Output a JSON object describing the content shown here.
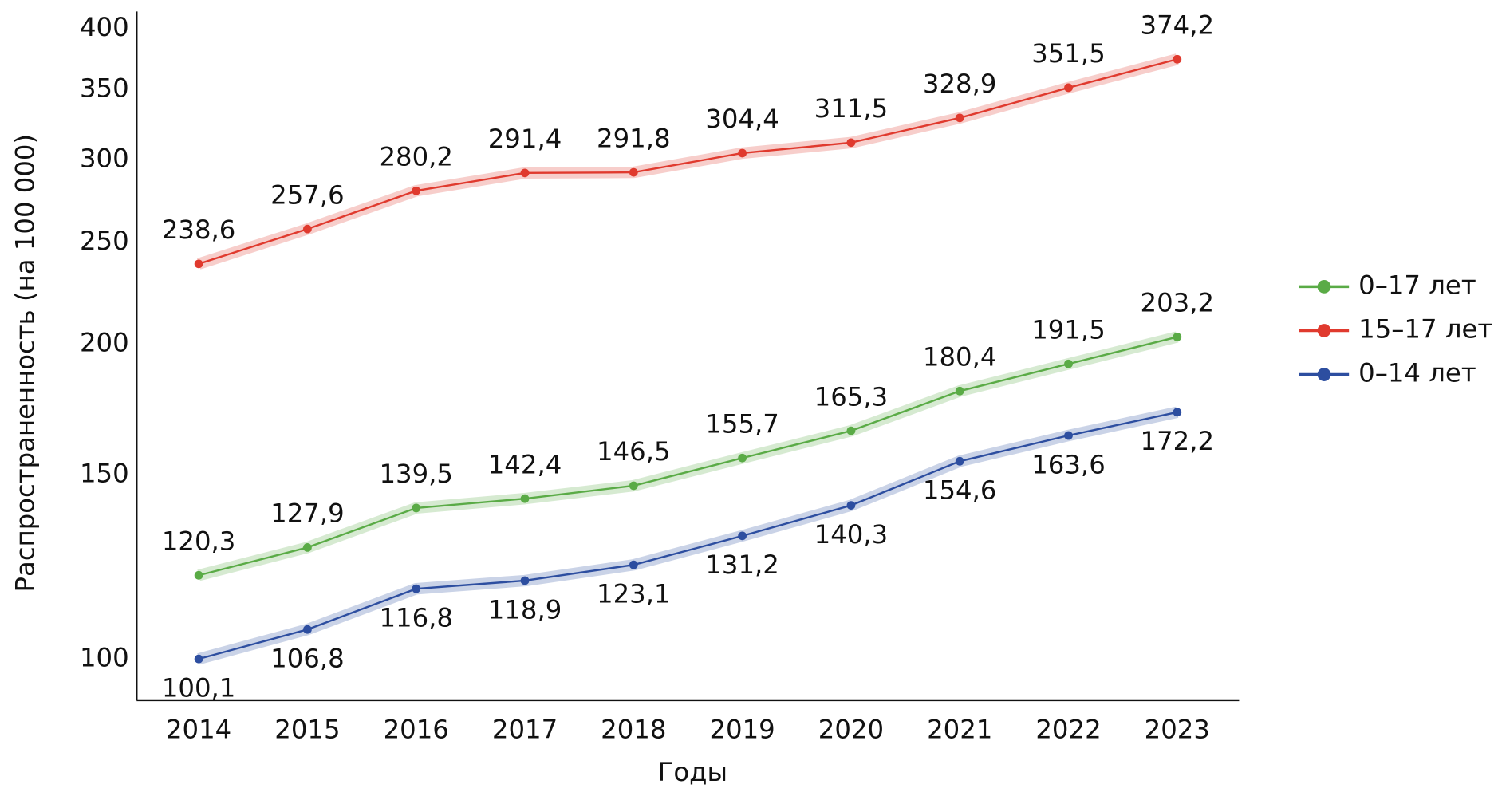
{
  "chart_data": {
    "type": "line",
    "log_scale": true,
    "y_label": "Распространенность (на 100 000)",
    "x_label": "Годы",
    "categories": [
      "2014",
      "2015",
      "2016",
      "2017",
      "2018",
      "2019",
      "2020",
      "2021",
      "2022",
      "2023"
    ],
    "series": [
      {
        "name": "0–17 лет",
        "color": "#5aab46",
        "label_position": "above",
        "values": [
          120.3,
          127.9,
          139.5,
          142.4,
          146.5,
          155.7,
          165.3,
          180.4,
          191.5,
          203.2
        ],
        "value_labels": [
          "120,3",
          "127,9",
          "139,5",
          "142,4",
          "146,5",
          "155,7",
          "165,3",
          "180,4",
          "191,5",
          "203,2"
        ]
      },
      {
        "name": "15–17 лет",
        "color": "#e03a2e",
        "label_position": "above",
        "values": [
          238.6,
          257.6,
          280.2,
          291.4,
          291.8,
          304.4,
          311.5,
          328.9,
          351.5,
          374.2
        ],
        "value_labels": [
          "238,6",
          "257,6",
          "280,2",
          "291,4",
          "291,8",
          "304,4",
          "311,5",
          "328,9",
          "351,5",
          "374,2"
        ]
      },
      {
        "name": "0–14 лет",
        "color": "#2d4ea0",
        "label_position": "below",
        "values": [
          100.1,
          106.8,
          116.8,
          118.9,
          123.1,
          131.2,
          140.3,
          154.6,
          163.6,
          172.2
        ],
        "value_labels": [
          "100,1",
          "106,8",
          "116,8",
          "118,9",
          "123,1",
          "131,2",
          "140,3",
          "154,6",
          "163,6",
          "172,2"
        ]
      }
    ],
    "ylim": [
      91.4,
      415.6
    ],
    "yticks": [
      100,
      150,
      200,
      250,
      300,
      350,
      400
    ],
    "legend": "right"
  }
}
